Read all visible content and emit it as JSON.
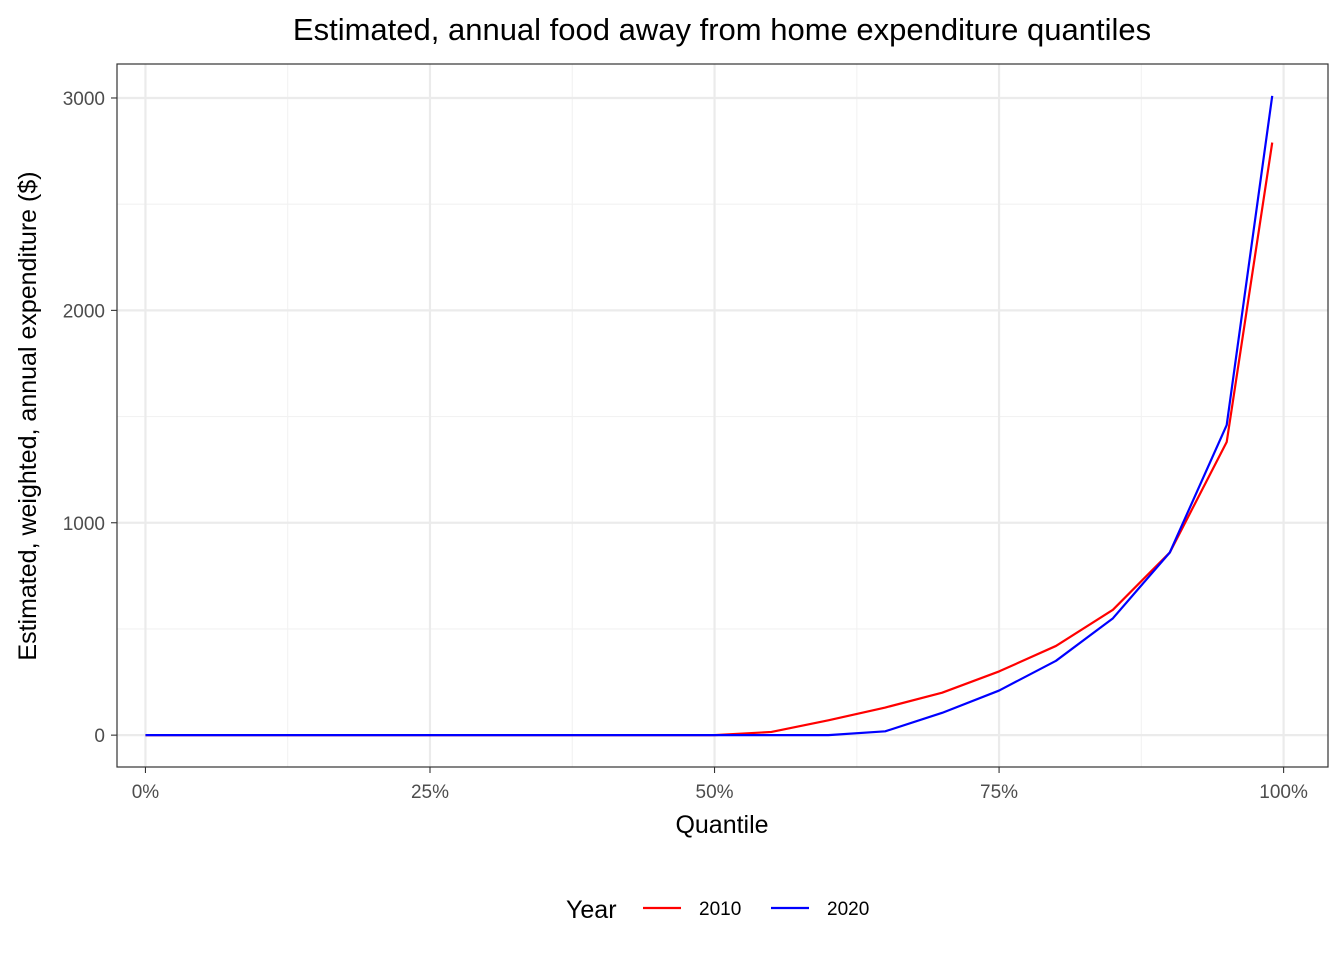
{
  "chart_data": {
    "type": "line",
    "title": "Estimated, annual food away from home expenditure quantiles",
    "xlabel": "Quantile",
    "ylabel": "Estimated, weighted, annual expenditure ($)",
    "x": [
      0,
      0.05,
      0.1,
      0.15,
      0.2,
      0.25,
      0.3,
      0.35,
      0.4,
      0.45,
      0.5,
      0.55,
      0.6,
      0.65,
      0.7,
      0.75,
      0.8,
      0.85,
      0.9,
      0.95,
      0.99
    ],
    "xlim": [
      -0.025,
      1.039
    ],
    "ylim": [
      -150,
      3160
    ],
    "x_ticks": [
      0,
      0.25,
      0.5,
      0.75,
      1.0
    ],
    "x_tick_labels": [
      "0%",
      "25%",
      "50%",
      "75%",
      "100%"
    ],
    "y_ticks": [
      0,
      1000,
      2000,
      3000
    ],
    "y_tick_labels": [
      "0",
      "1000",
      "2000",
      "3000"
    ],
    "grid": true,
    "legend": {
      "title": "Year",
      "position": "bottom"
    },
    "series": [
      {
        "name": "2010",
        "color": "#ff0000",
        "values": [
          0,
          0,
          0,
          0,
          0,
          0,
          0,
          0,
          0,
          0,
          0,
          15,
          70,
          130,
          200,
          300,
          420,
          590,
          860,
          1380,
          2790
        ]
      },
      {
        "name": "2020",
        "color": "#0000ff",
        "values": [
          0,
          0,
          0,
          0,
          0,
          0,
          0,
          0,
          0,
          0,
          0,
          0,
          0,
          18,
          105,
          210,
          350,
          550,
          860,
          1460,
          3010
        ]
      }
    ]
  }
}
